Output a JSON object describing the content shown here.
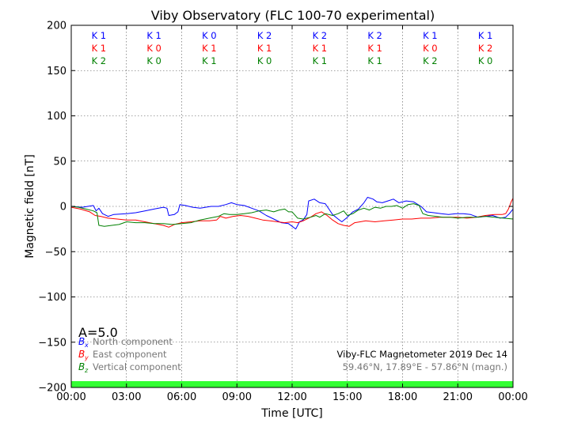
{
  "chart_data": {
    "type": "line",
    "title": "Viby Observatory (FLC 100-70 experimental)",
    "xlabel": "Time [UTC]",
    "ylabel": "Magnetic field [nT]",
    "xlim": [
      0,
      24
    ],
    "ylim": [
      -200,
      200
    ],
    "xticks": [
      {
        "v": 0,
        "label": "00:00"
      },
      {
        "v": 3,
        "label": "03:00"
      },
      {
        "v": 6,
        "label": "06:00"
      },
      {
        "v": 9,
        "label": "09:00"
      },
      {
        "v": 12,
        "label": "12:00"
      },
      {
        "v": 15,
        "label": "15:00"
      },
      {
        "v": 18,
        "label": "18:00"
      },
      {
        "v": 21,
        "label": "21:00"
      },
      {
        "v": 24,
        "label": "00:00"
      }
    ],
    "yticks": [
      {
        "v": 200,
        "label": "200"
      },
      {
        "v": 150,
        "label": "150"
      },
      {
        "v": 100,
        "label": "100"
      },
      {
        "v": 50,
        "label": "50"
      },
      {
        "v": 0,
        "label": "0"
      },
      {
        "v": -50,
        "label": "−50"
      },
      {
        "v": -100,
        "label": "−100"
      },
      {
        "v": -150,
        "label": "−150"
      },
      {
        "v": -200,
        "label": "−200"
      }
    ],
    "grid": true,
    "k_indices": {
      "bins_x": [
        1.5,
        4.5,
        7.5,
        10.5,
        13.5,
        16.5,
        19.5,
        22.5
      ],
      "rows": [
        {
          "color": "#0000ff",
          "labels": [
            "K 1",
            "K 1",
            "K 0",
            "K 2",
            "K 2",
            "K 2",
            "K 1",
            "K 1"
          ]
        },
        {
          "color": "#ff0000",
          "labels": [
            "K 1",
            "K 0",
            "K 1",
            "K 1",
            "K 1",
            "K 1",
            "K 0",
            "K 2"
          ]
        },
        {
          "color": "#008000",
          "labels": [
            "K 2",
            "K 0",
            "K 1",
            "K 0",
            "K 1",
            "K 1",
            "K 2",
            "K 0"
          ]
        }
      ]
    },
    "a_index_label": "A=5.0",
    "legend_position": "lower-left",
    "legend": [
      {
        "symbol": "B",
        "subscript": "x",
        "text": "North component",
        "color": "#0000ff"
      },
      {
        "symbol": "B",
        "subscript": "y",
        "text": "East component",
        "color": "#ff0000"
      },
      {
        "symbol": "B",
        "subscript": "z",
        "text": "Vertical component",
        "color": "#008000"
      }
    ],
    "info_line1": "Viby-FLC Magnetometer 2019 Dec 14",
    "info_line2": "59.46°N, 17.89°E - 57.86°N (magn.)",
    "quiet_band": {
      "y_from": -200,
      "y_to": -193,
      "color": "#33ff33"
    },
    "series": [
      {
        "name": "North component",
        "color": "#0000ff",
        "points": [
          [
            0.0,
            0
          ],
          [
            0.6,
            -1
          ],
          [
            1.2,
            1
          ],
          [
            1.35,
            -5
          ],
          [
            1.5,
            -2
          ],
          [
            1.7,
            -8
          ],
          [
            2.0,
            -11
          ],
          [
            2.3,
            -9
          ],
          [
            3.0,
            -8
          ],
          [
            3.5,
            -7
          ],
          [
            4.0,
            -5
          ],
          [
            4.5,
            -3
          ],
          [
            5.0,
            -1
          ],
          [
            5.2,
            -2
          ],
          [
            5.3,
            -10
          ],
          [
            5.6,
            -9
          ],
          [
            5.8,
            -6
          ],
          [
            5.9,
            2
          ],
          [
            6.2,
            1
          ],
          [
            6.6,
            -1
          ],
          [
            7.0,
            -2
          ],
          [
            7.3,
            -1
          ],
          [
            7.6,
            0
          ],
          [
            8.0,
            0
          ],
          [
            8.4,
            2
          ],
          [
            8.7,
            4
          ],
          [
            9.0,
            2
          ],
          [
            9.4,
            1
          ],
          [
            9.8,
            -2
          ],
          [
            10.2,
            -5
          ],
          [
            10.6,
            -10
          ],
          [
            11.0,
            -14
          ],
          [
            11.4,
            -18
          ],
          [
            11.8,
            -19
          ],
          [
            12.0,
            -22
          ],
          [
            12.2,
            -25
          ],
          [
            12.4,
            -17
          ],
          [
            12.6,
            -15
          ],
          [
            12.8,
            -9
          ],
          [
            12.9,
            6
          ],
          [
            13.2,
            8
          ],
          [
            13.5,
            4
          ],
          [
            13.8,
            3
          ],
          [
            14.0,
            -3
          ],
          [
            14.2,
            -9
          ],
          [
            14.5,
            -14
          ],
          [
            14.7,
            -17
          ],
          [
            15.0,
            -12
          ],
          [
            15.3,
            -6
          ],
          [
            15.6,
            -3
          ],
          [
            15.9,
            4
          ],
          [
            16.1,
            10
          ],
          [
            16.4,
            8
          ],
          [
            16.6,
            5
          ],
          [
            16.9,
            4
          ],
          [
            17.2,
            6
          ],
          [
            17.5,
            8
          ],
          [
            17.8,
            4
          ],
          [
            18.2,
            6
          ],
          [
            18.6,
            5
          ],
          [
            19.0,
            0
          ],
          [
            19.3,
            -6
          ],
          [
            19.7,
            -7
          ],
          [
            20.1,
            -8
          ],
          [
            20.5,
            -9
          ],
          [
            20.9,
            -8
          ],
          [
            21.3,
            -8
          ],
          [
            21.7,
            -9
          ],
          [
            22.1,
            -12
          ],
          [
            22.5,
            -11
          ],
          [
            22.9,
            -10
          ],
          [
            23.3,
            -13
          ],
          [
            23.6,
            -12
          ],
          [
            23.8,
            -8
          ],
          [
            24.0,
            -3
          ]
        ]
      },
      {
        "name": "East component",
        "color": "#ff0000",
        "points": [
          [
            0.0,
            -1
          ],
          [
            0.5,
            -3
          ],
          [
            1.0,
            -6
          ],
          [
            1.3,
            -10
          ],
          [
            1.6,
            -11
          ],
          [
            2.0,
            -13
          ],
          [
            2.5,
            -14
          ],
          [
            3.0,
            -15
          ],
          [
            3.5,
            -15
          ],
          [
            4.0,
            -17
          ],
          [
            4.5,
            -19
          ],
          [
            5.0,
            -21
          ],
          [
            5.3,
            -23
          ],
          [
            5.6,
            -20
          ],
          [
            6.0,
            -18
          ],
          [
            6.5,
            -17
          ],
          [
            7.0,
            -16
          ],
          [
            7.5,
            -16
          ],
          [
            7.9,
            -15
          ],
          [
            8.1,
            -11
          ],
          [
            8.4,
            -13
          ],
          [
            8.8,
            -11
          ],
          [
            9.2,
            -10
          ],
          [
            9.6,
            -11
          ],
          [
            10.0,
            -13
          ],
          [
            10.4,
            -15
          ],
          [
            10.8,
            -16
          ],
          [
            11.2,
            -17
          ],
          [
            11.6,
            -18
          ],
          [
            12.0,
            -17
          ],
          [
            12.3,
            -18
          ],
          [
            12.6,
            -16
          ],
          [
            13.0,
            -12
          ],
          [
            13.3,
            -8
          ],
          [
            13.6,
            -6
          ],
          [
            13.9,
            -10
          ],
          [
            14.2,
            -15
          ],
          [
            14.5,
            -19
          ],
          [
            14.8,
            -21
          ],
          [
            15.1,
            -22
          ],
          [
            15.4,
            -18
          ],
          [
            15.7,
            -17
          ],
          [
            16.0,
            -16
          ],
          [
            16.5,
            -17
          ],
          [
            17.0,
            -16
          ],
          [
            17.5,
            -15
          ],
          [
            18.0,
            -14
          ],
          [
            18.5,
            -14
          ],
          [
            19.0,
            -13
          ],
          [
            19.5,
            -13
          ],
          [
            20.0,
            -12
          ],
          [
            20.5,
            -12
          ],
          [
            21.0,
            -12
          ],
          [
            21.5,
            -13
          ],
          [
            22.0,
            -12
          ],
          [
            22.5,
            -10
          ],
          [
            23.0,
            -9
          ],
          [
            23.4,
            -9
          ],
          [
            23.6,
            -8
          ],
          [
            23.75,
            -3
          ],
          [
            23.9,
            5
          ],
          [
            24.0,
            9
          ]
        ]
      },
      {
        "name": "Vertical component",
        "color": "#008000",
        "points": [
          [
            0.0,
            0
          ],
          [
            0.4,
            -1
          ],
          [
            0.8,
            -3
          ],
          [
            1.2,
            -5
          ],
          [
            1.4,
            -7
          ],
          [
            1.5,
            -21
          ],
          [
            1.8,
            -22
          ],
          [
            2.2,
            -21
          ],
          [
            2.6,
            -20
          ],
          [
            3.0,
            -17
          ],
          [
            3.5,
            -18
          ],
          [
            4.0,
            -18
          ],
          [
            4.5,
            -19
          ],
          [
            5.0,
            -19
          ],
          [
            5.5,
            -20
          ],
          [
            6.0,
            -19
          ],
          [
            6.5,
            -18
          ],
          [
            7.0,
            -15
          ],
          [
            7.5,
            -13
          ],
          [
            8.0,
            -11
          ],
          [
            8.3,
            -8
          ],
          [
            8.6,
            -9
          ],
          [
            9.0,
            -9
          ],
          [
            9.4,
            -8
          ],
          [
            9.8,
            -7
          ],
          [
            10.2,
            -5
          ],
          [
            10.6,
            -4
          ],
          [
            11.0,
            -6
          ],
          [
            11.3,
            -4
          ],
          [
            11.6,
            -3
          ],
          [
            11.8,
            -6
          ],
          [
            12.0,
            -6
          ],
          [
            12.3,
            -13
          ],
          [
            12.6,
            -14
          ],
          [
            13.0,
            -12
          ],
          [
            13.3,
            -10
          ],
          [
            13.5,
            -12
          ],
          [
            13.8,
            -8
          ],
          [
            14.2,
            -10
          ],
          [
            14.5,
            -8
          ],
          [
            14.8,
            -5
          ],
          [
            15.0,
            -10
          ],
          [
            15.3,
            -8
          ],
          [
            15.6,
            -4
          ],
          [
            15.9,
            -2
          ],
          [
            16.2,
            -4
          ],
          [
            16.5,
            -1
          ],
          [
            16.8,
            -2
          ],
          [
            17.1,
            0
          ],
          [
            17.4,
            0
          ],
          [
            17.7,
            1
          ],
          [
            18.0,
            -2
          ],
          [
            18.3,
            2
          ],
          [
            18.6,
            3
          ],
          [
            18.9,
            1
          ],
          [
            19.1,
            -8
          ],
          [
            19.4,
            -10
          ],
          [
            19.8,
            -11
          ],
          [
            20.2,
            -12
          ],
          [
            20.6,
            -12
          ],
          [
            21.0,
            -13
          ],
          [
            21.5,
            -12
          ],
          [
            22.0,
            -12
          ],
          [
            22.5,
            -11
          ],
          [
            23.0,
            -12
          ],
          [
            23.5,
            -13
          ],
          [
            24.0,
            -14
          ]
        ]
      }
    ]
  }
}
